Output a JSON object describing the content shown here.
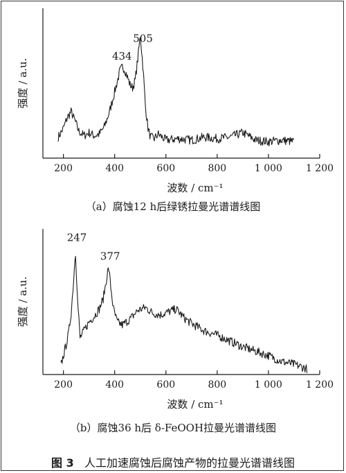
{
  "figure_caption": {
    "label": "图 3",
    "text": "人工加速腐蚀后腐蚀产物的拉曼光谱谱线图"
  },
  "chart_data": [
    {
      "type": "line",
      "caption": "（a）腐蚀12 h后绿锈拉曼光谱谱线图",
      "xlabel": "波数 / cm⁻¹",
      "ylabel": "强度 / a.u.",
      "xlim": [
        120,
        1200
      ],
      "xticks": [
        200,
        400,
        600,
        800,
        1000,
        1200
      ],
      "xtick_labels": [
        "200",
        "400",
        "600",
        "800",
        "1 000",
        "1 200"
      ],
      "ylim": [
        0,
        1
      ],
      "peaks": [
        {
          "x": 434,
          "label": "434"
        },
        {
          "x": 505,
          "label": "505"
        }
      ],
      "x": [
        180,
        200,
        215,
        230,
        245,
        260,
        280,
        300,
        320,
        340,
        360,
        380,
        395,
        410,
        420,
        430,
        440,
        450,
        460,
        470,
        480,
        490,
        500,
        510,
        520,
        530,
        540,
        555,
        570,
        600,
        650,
        700,
        750,
        800,
        850,
        900,
        950,
        1000,
        1050,
        1100
      ],
      "y": [
        0.14,
        0.2,
        0.27,
        0.31,
        0.25,
        0.18,
        0.15,
        0.17,
        0.15,
        0.16,
        0.21,
        0.31,
        0.41,
        0.51,
        0.58,
        0.61,
        0.59,
        0.54,
        0.49,
        0.47,
        0.52,
        0.66,
        0.82,
        0.62,
        0.35,
        0.2,
        0.14,
        0.13,
        0.16,
        0.12,
        0.13,
        0.12,
        0.14,
        0.13,
        0.14,
        0.17,
        0.12,
        0.11,
        0.12,
        0.11
      ]
    },
    {
      "type": "line",
      "caption": "（b）腐蚀36 h后 δ-FeOOH拉曼光谱谱线图",
      "xlabel": "波数 / cm⁻¹",
      "ylabel": "强度 / a.u.",
      "xlim": [
        120,
        1200
      ],
      "xticks": [
        200,
        400,
        600,
        800,
        1000,
        1200
      ],
      "xtick_labels": [
        "200",
        "400",
        "600",
        "800",
        "1 000",
        "1 200"
      ],
      "ylim": [
        0,
        1
      ],
      "peaks": [
        {
          "x": 247,
          "label": "247"
        },
        {
          "x": 377,
          "label": "377"
        }
      ],
      "x": [
        190,
        200,
        210,
        220,
        230,
        240,
        247,
        255,
        265,
        280,
        300,
        320,
        340,
        355,
        365,
        372,
        377,
        385,
        395,
        410,
        430,
        460,
        490,
        520,
        550,
        580,
        610,
        640,
        670,
        700,
        750,
        800,
        850,
        900,
        950,
        1000,
        1050,
        1100,
        1150
      ],
      "y": [
        0.06,
        0.13,
        0.2,
        0.28,
        0.42,
        0.65,
        0.86,
        0.52,
        0.25,
        0.3,
        0.36,
        0.4,
        0.45,
        0.52,
        0.62,
        0.7,
        0.73,
        0.6,
        0.45,
        0.36,
        0.34,
        0.38,
        0.44,
        0.46,
        0.42,
        0.41,
        0.43,
        0.45,
        0.39,
        0.35,
        0.3,
        0.27,
        0.23,
        0.19,
        0.16,
        0.13,
        0.09,
        0.07,
        0.04
      ]
    }
  ]
}
